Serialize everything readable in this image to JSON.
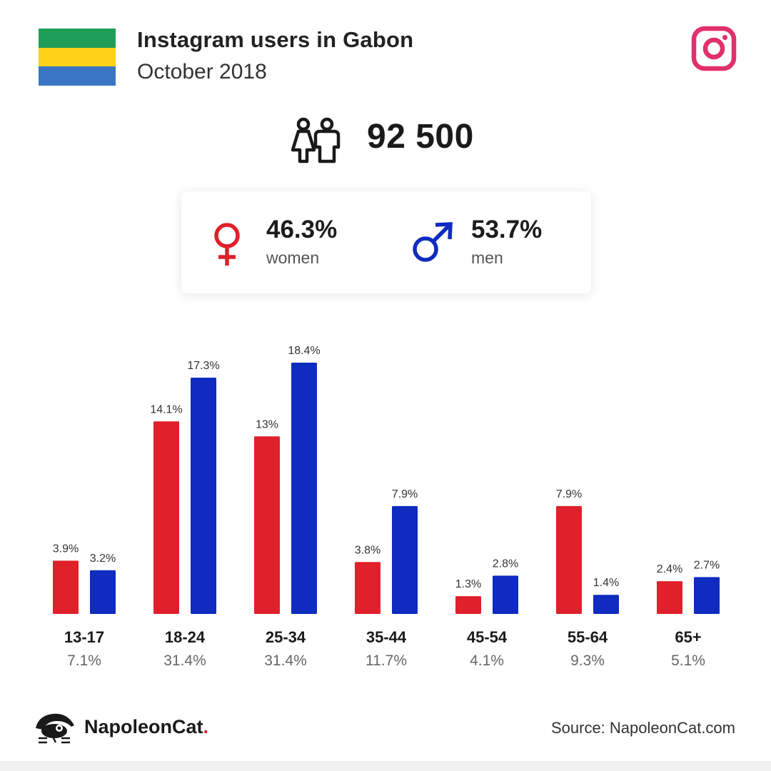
{
  "header": {
    "title": "Instagram users in Gabon",
    "subtitle": "October 2018"
  },
  "flag": {
    "colors": [
      "#1f9e59",
      "#fcd116",
      "#3a75c4"
    ]
  },
  "icons": {
    "platform": "instagram-icon",
    "users": "users-icon",
    "female": "female-symbol-icon",
    "male": "male-symbol-icon"
  },
  "total_users": "92 500",
  "gender": {
    "women_pct": "46.3%",
    "women_label": "women",
    "women_color": "#e0202a",
    "men_pct": "53.7%",
    "men_label": "men",
    "men_color": "#0f2bc0"
  },
  "chart_data": {
    "type": "bar",
    "categories": [
      "13-17",
      "18-24",
      "25-34",
      "35-44",
      "45-54",
      "55-64",
      "65+"
    ],
    "category_totals": [
      "7.1%",
      "31.4%",
      "31.4%",
      "11.7%",
      "4.1%",
      "9.3%",
      "5.1%"
    ],
    "series": [
      {
        "values": [
          3.9,
          14.1,
          13,
          3.8,
          1.3,
          7.9,
          2.4
        ],
        "labels": [
          "3.9%",
          "14.1%",
          "13%",
          "3.8%",
          "1.3%",
          "7.9%",
          "2.4%"
        ],
        "color": "#e0202a"
      },
      {
        "values": [
          3.2,
          17.3,
          18.4,
          7.9,
          2.8,
          1.4,
          2.7
        ],
        "labels": [
          "3.2%",
          "17.3%",
          "18.4%",
          "7.9%",
          "2.8%",
          "1.4%",
          "2.7%"
        ],
        "color": "#0f2bc0"
      }
    ],
    "ylim": [
      0,
      18.4
    ],
    "grid": false
  },
  "footer": {
    "brand_name": "NapoleonCat",
    "brand_dot": ".",
    "source": "Source: NapoleonCat.com"
  }
}
